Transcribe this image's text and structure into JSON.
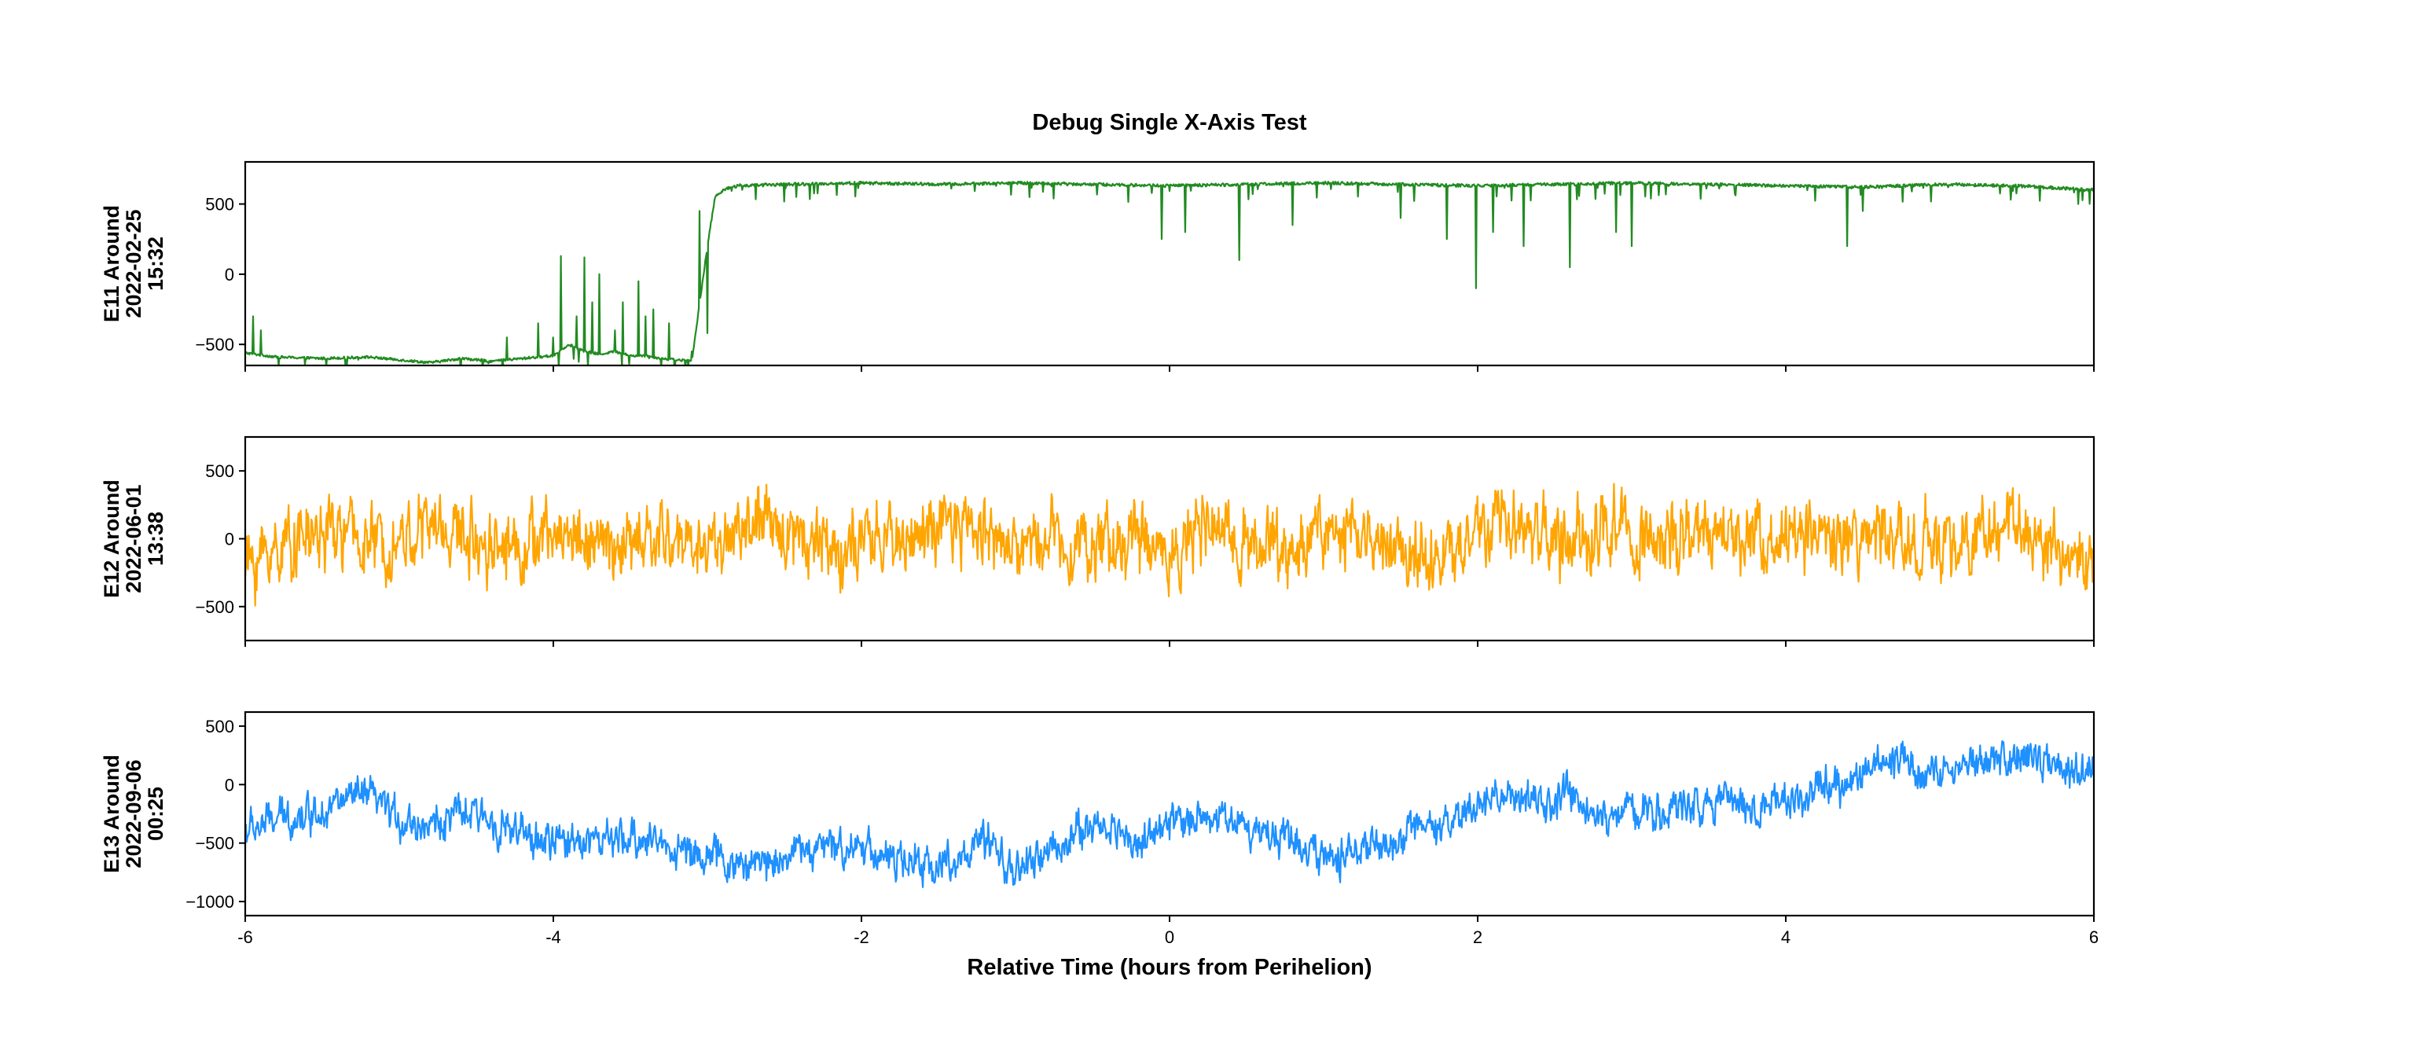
{
  "chart_data": {
    "type": "line",
    "title": "Debug Single X-Axis Test",
    "xlabel": "Relative Time (hours from Perihelion)",
    "xlim": [
      -6,
      6
    ],
    "xticks": [
      -6,
      -4,
      -2,
      0,
      2,
      4,
      6
    ],
    "xtick_labels": [
      "-6",
      "-4",
      "-2",
      "0",
      "2",
      "4",
      "6"
    ],
    "shared_x": true,
    "grid": false,
    "panels": [
      {
        "ylabel": [
          "E11 Around",
          "2022-02-25",
          "15:32"
        ],
        "ylim": [
          -650,
          800
        ],
        "yticks": [
          -500,
          0,
          500
        ],
        "ytick_labels": [
          "−500",
          "0",
          "500"
        ],
        "series": [
          {
            "color": "#228b22",
            "x": [
              -6.0,
              -5.8,
              -5.5,
              -5.2,
              -5.0,
              -4.8,
              -4.6,
              -4.4,
              -4.2,
              -4.0,
              -3.9,
              -3.8,
              -3.7,
              -3.6,
              -3.5,
              -3.4,
              -3.3,
              -3.2,
              -3.1,
              -3.05,
              -3.0,
              -2.95,
              -2.9,
              -2.8,
              -2.5,
              -2.0,
              -1.5,
              -1.0,
              -0.5,
              0.0,
              0.5,
              1.0,
              1.5,
              2.0,
              2.5,
              3.0,
              3.5,
              4.0,
              4.5,
              5.0,
              5.5,
              6.0
            ],
            "y": [
              -560,
              -590,
              -600,
              -590,
              -610,
              -630,
              -600,
              -620,
              -600,
              -580,
              -500,
              -550,
              -570,
              -550,
              -580,
              -580,
              -600,
              -610,
              -620,
              -200,
              200,
              550,
              600,
              630,
              640,
              650,
              640,
              650,
              640,
              630,
              640,
              650,
              640,
              630,
              640,
              650,
              640,
              630,
              620,
              640,
              630,
              600
            ],
            "spikes": [
              {
                "x": -5.95,
                "y": -300
              },
              {
                "x": -5.9,
                "y": -400
              },
              {
                "x": -4.3,
                "y": -450
              },
              {
                "x": -4.1,
                "y": -350
              },
              {
                "x": -4.0,
                "y": -450
              },
              {
                "x": -3.95,
                "y": 130
              },
              {
                "x": -3.85,
                "y": -300
              },
              {
                "x": -3.8,
                "y": 120
              },
              {
                "x": -3.75,
                "y": -200
              },
              {
                "x": -3.7,
                "y": 0
              },
              {
                "x": -3.6,
                "y": -400
              },
              {
                "x": -3.55,
                "y": -200
              },
              {
                "x": -3.45,
                "y": -50
              },
              {
                "x": -3.4,
                "y": -300
              },
              {
                "x": -3.35,
                "y": -250
              },
              {
                "x": -3.25,
                "y": -350
              },
              {
                "x": -3.1,
                "y": -550
              },
              {
                "x": -3.05,
                "y": 450
              },
              {
                "x": -3.0,
                "y": -420
              },
              {
                "x": -0.05,
                "y": 250
              },
              {
                "x": 0.1,
                "y": 300
              },
              {
                "x": 0.45,
                "y": 100
              },
              {
                "x": 0.8,
                "y": 350
              },
              {
                "x": 1.5,
                "y": 400
              },
              {
                "x": 1.8,
                "y": 250
              },
              {
                "x": 1.99,
                "y": -100
              },
              {
                "x": 2.1,
                "y": 300
              },
              {
                "x": 2.3,
                "y": 200
              },
              {
                "x": 2.6,
                "y": 50
              },
              {
                "x": 2.9,
                "y": 300
              },
              {
                "x": 3.0,
                "y": 200
              },
              {
                "x": 4.4,
                "y": 200
              },
              {
                "x": 4.5,
                "y": 450
              },
              {
                "x": 5.9,
                "y": 500
              }
            ]
          }
        ]
      },
      {
        "ylabel": [
          "E12 Around",
          "2022-06-01",
          "13:38"
        ],
        "ylim": [
          -750,
          750
        ],
        "yticks": [
          -500,
          0,
          500
        ],
        "ytick_labels": [
          "−500",
          "0",
          "500"
        ],
        "series": [
          {
            "color": "#ffa500",
            "x": [
              -6.0,
              -5.7,
              -5.4,
              -5.1,
              -4.8,
              -4.5,
              -4.2,
              -3.9,
              -3.6,
              -3.3,
              -3.0,
              -2.7,
              -2.4,
              -2.1,
              -1.8,
              -1.5,
              -1.2,
              -1.0,
              -0.8,
              -0.5,
              -0.2,
              0.0,
              0.2,
              0.5,
              0.8,
              1.0,
              1.2,
              1.5,
              1.8,
              2.0,
              2.3,
              2.6,
              2.9,
              3.2,
              3.5,
              3.8,
              4.1,
              4.4,
              4.7,
              5.0,
              5.3,
              5.6,
              5.8,
              6.0
            ],
            "y": [
              -200,
              0,
              50,
              -50,
              100,
              0,
              -50,
              50,
              -80,
              0,
              -50,
              100,
              50,
              -100,
              0,
              50,
              100,
              -100,
              50,
              -50,
              0,
              -100,
              50,
              0,
              -100,
              100,
              0,
              -50,
              -150,
              50,
              100,
              -50,
              100,
              -50,
              0,
              50,
              0,
              -50,
              50,
              -100,
              100,
              50,
              -100,
              -200
            ],
            "noise_amplitude": 320
          }
        ]
      },
      {
        "ylabel": [
          "E13 Around",
          "2022-09-06",
          "00:25"
        ],
        "ylim": [
          -1120,
          620
        ],
        "yticks": [
          -1000,
          -500,
          0,
          500
        ],
        "ytick_labels": [
          "−1000",
          "−500",
          "0",
          "500"
        ],
        "series": [
          {
            "color": "#1e90ff",
            "x": [
              -6.0,
              -5.8,
              -5.6,
              -5.4,
              -5.2,
              -5.0,
              -4.8,
              -4.6,
              -4.4,
              -4.2,
              -4.0,
              -3.8,
              -3.6,
              -3.4,
              -3.2,
              -3.0,
              -2.8,
              -2.6,
              -2.4,
              -2.2,
              -2.0,
              -1.8,
              -1.6,
              -1.4,
              -1.2,
              -1.0,
              -0.8,
              -0.6,
              -0.4,
              -0.2,
              0.0,
              0.2,
              0.4,
              0.6,
              0.8,
              1.0,
              1.2,
              1.4,
              1.6,
              1.8,
              2.0,
              2.2,
              2.4,
              2.6,
              2.8,
              3.0,
              3.2,
              3.4,
              3.6,
              3.8,
              4.0,
              4.2,
              4.4,
              4.6,
              4.8,
              5.0,
              5.2,
              5.4,
              5.6,
              5.8,
              6.0
            ],
            "y": [
              -400,
              -300,
              -250,
              -150,
              -100,
              -300,
              -350,
              -250,
              -300,
              -450,
              -500,
              -450,
              -500,
              -450,
              -550,
              -600,
              -700,
              -650,
              -550,
              -550,
              -500,
              -650,
              -700,
              -650,
              -500,
              -750,
              -600,
              -400,
              -350,
              -500,
              -350,
              -250,
              -300,
              -400,
              -450,
              -650,
              -550,
              -550,
              -400,
              -400,
              -150,
              -100,
              -200,
              -100,
              -300,
              -200,
              -250,
              -150,
              -100,
              -200,
              -150,
              -50,
              0,
              150,
              200,
              100,
              150,
              200,
              250,
              150,
              100
            ],
            "noise_amplitude": 200
          }
        ]
      }
    ]
  }
}
